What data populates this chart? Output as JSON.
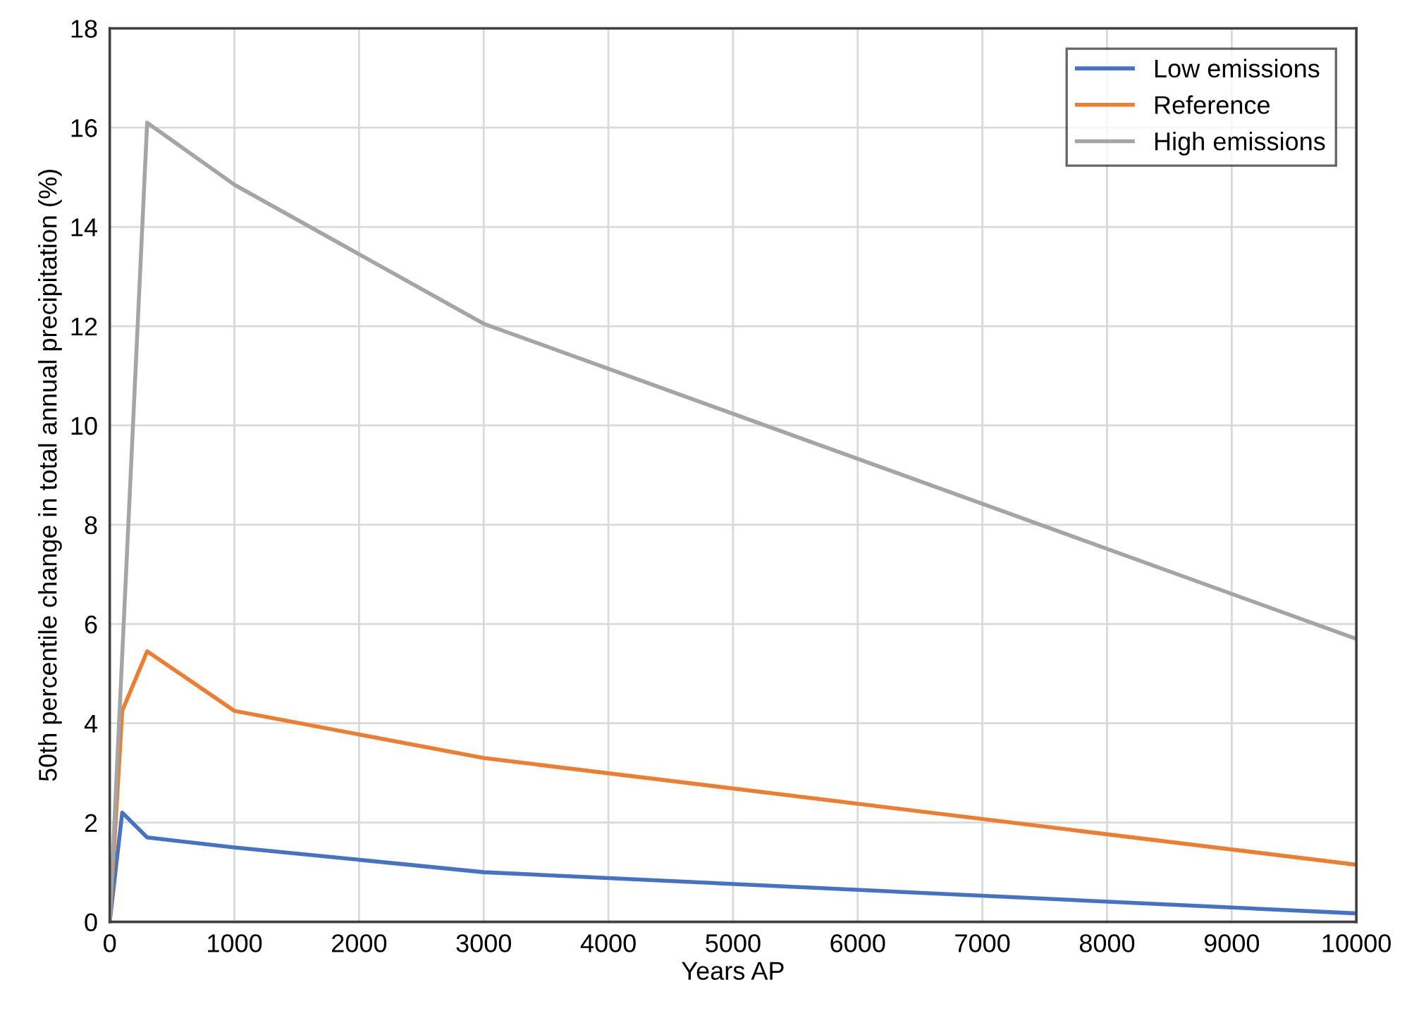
{
  "chart_data": {
    "type": "line",
    "xlabel": "Years AP",
    "ylabel": "50th percentile change in total annual precipitation (%)",
    "xlim": [
      0,
      10000
    ],
    "xticks": [
      0,
      1000,
      2000,
      3000,
      4000,
      5000,
      6000,
      7000,
      8000,
      9000,
      10000
    ],
    "ylim": [
      0,
      18
    ],
    "yticks": [
      0,
      2,
      4,
      6,
      8,
      10,
      12,
      14,
      16,
      18
    ],
    "grid": true,
    "legend": "top right",
    "marker": "none",
    "line_style": "solid",
    "series": [
      {
        "name": "Low emissions",
        "color": "#4472c4",
        "x": [
          0,
          100,
          300,
          1000,
          3000,
          10000
        ],
        "values": [
          0,
          2.2,
          1.7,
          1.5,
          1.0,
          0.17
        ]
      },
      {
        "name": "Reference",
        "color": "#ed7d31",
        "x": [
          0,
          100,
          300,
          1000,
          3000,
          10000
        ],
        "values": [
          0,
          4.25,
          5.45,
          4.25,
          3.3,
          1.15
        ]
      },
      {
        "name": "High emissions",
        "color": "#a5a5a5",
        "x": [
          0,
          300,
          1000,
          3000,
          10000
        ],
        "values": [
          0,
          16.1,
          14.85,
          12.05,
          5.7
        ]
      }
    ]
  }
}
